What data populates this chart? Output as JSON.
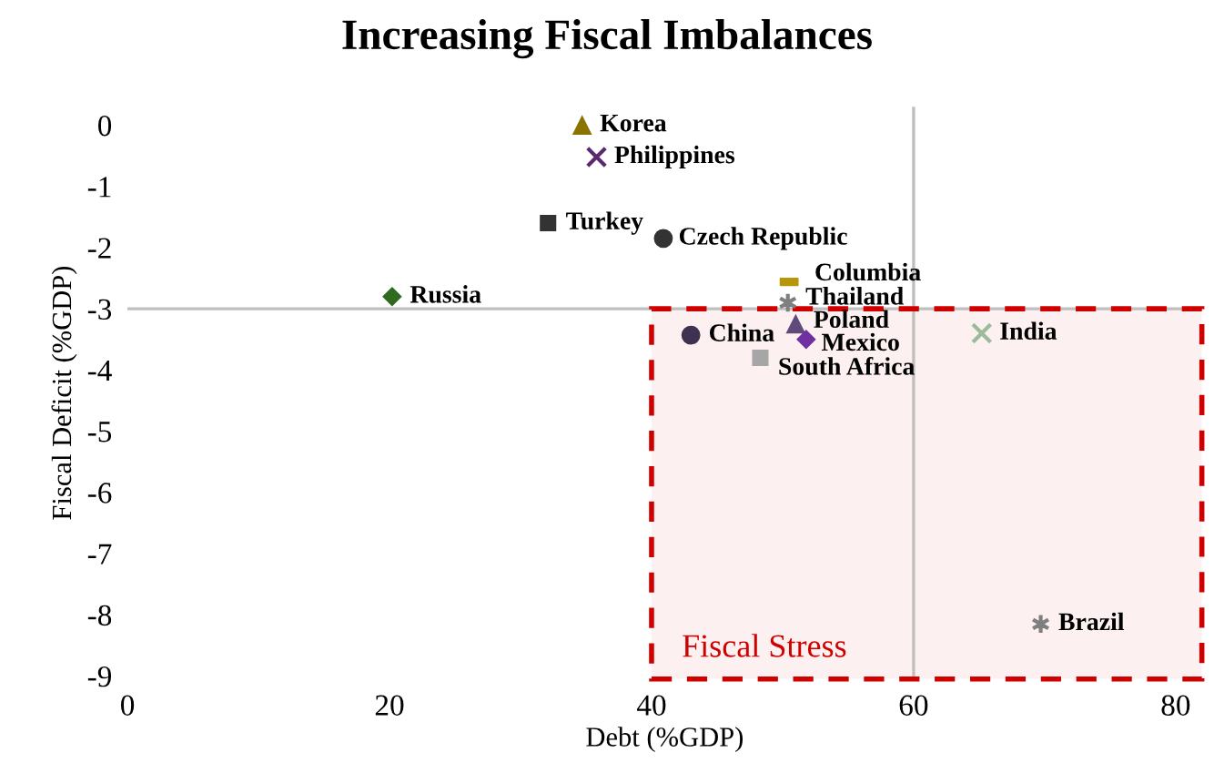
{
  "chart_data": {
    "type": "scatter",
    "title": "Increasing Fiscal Imbalances",
    "xlabel": "Debt (%GDP)",
    "ylabel": "Fiscal Deficit (%GDP)",
    "xlim": [
      0,
      82
    ],
    "ylim": [
      -9.05,
      0.3
    ],
    "xticks": [
      0,
      20,
      40,
      60,
      80
    ],
    "yticks": [
      {
        "value": 0,
        "label": "0"
      },
      -1,
      -2,
      -3,
      -4,
      -5,
      -6,
      -7,
      -8,
      -9
    ],
    "grid": false,
    "legend": false,
    "ref_lines": [
      {
        "axis": "y",
        "value": -3,
        "color": "#bfbfbf"
      },
      {
        "axis": "x",
        "value": 60,
        "color": "#bfbfbf"
      }
    ],
    "bands": [
      {
        "axis": "x",
        "from": 40,
        "to": 82,
        "label": "Fiscal Stress",
        "color": "#d00000"
      }
    ],
    "series": [
      {
        "name": "Korea",
        "color": "#8b7300",
        "marker": "triangle",
        "x": [
          34.7
        ],
        "values": [
          0
        ]
      },
      {
        "name": "Philippines",
        "color": "#5b2a6e",
        "marker": "cross",
        "x": [
          35.8
        ],
        "values": [
          -0.52
        ]
      },
      {
        "name": "Turkey",
        "color": "#333333",
        "marker": "square",
        "x": [
          32.1
        ],
        "values": [
          -1.6
        ]
      },
      {
        "name": "Czech Republic",
        "color": "#333333",
        "marker": "circle",
        "x": [
          40.9
        ],
        "values": [
          -1.85
        ]
      },
      {
        "name": "Columbia",
        "color": "#b8960a",
        "x": [
          50.5
        ],
        "values": [
          -2.56
        ]
      },
      {
        "name": "Thailand",
        "color": "#7f7f7f",
        "marker": "cross",
        "x": [
          50.4
        ],
        "values": [
          -2.9
        ]
      },
      {
        "name": "Poland",
        "color": "#604a7b",
        "marker": "triangle",
        "x": [
          51.0
        ],
        "values": [
          -3.25
        ]
      },
      {
        "name": "Mexico",
        "color": "#7030a0",
        "marker": "diamond",
        "x": [
          51.8
        ],
        "values": [
          -3.5
        ]
      },
      {
        "name": "China",
        "color": "#3f3151",
        "marker": "circle",
        "x": [
          43.0
        ],
        "values": [
          -3.43
        ]
      },
      {
        "name": "South Africa",
        "color": "#a6a6a6",
        "marker": "square",
        "x": [
          48.3
        ],
        "values": [
          -3.8
        ]
      },
      {
        "name": "India",
        "color": "#9bbb9b",
        "marker": "cross",
        "x": [
          65.2
        ],
        "values": [
          -3.4
        ]
      },
      {
        "name": "Brazil",
        "color": "#7f7f7f",
        "marker": "cross",
        "x": [
          69.7
        ],
        "values": [
          -8.15
        ]
      },
      {
        "name": "Russia",
        "color": "#2e6b1e",
        "marker": "diamond",
        "x": [
          20.2
        ],
        "values": [
          -2.8
        ]
      }
    ]
  }
}
